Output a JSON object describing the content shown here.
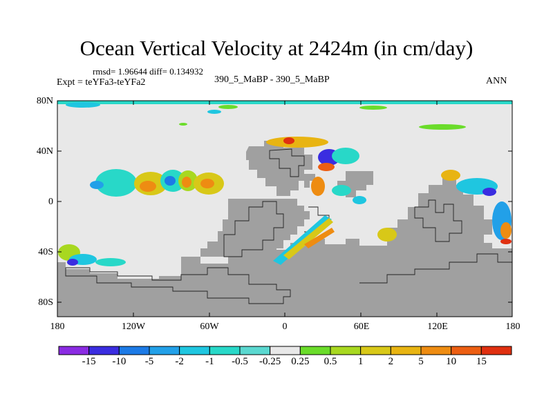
{
  "title": "Ocean Vertical Velocity at 2424m (in cm/day)",
  "stats": "rmsd= 1.96644 diff= 0.134932",
  "expt": "Expt = teYFa3-teYFa2",
  "subtitle": "390_5_MaBP - 390_5_MaBP",
  "season": "ANN",
  "lat_labels": [
    "80N",
    "40N",
    "0",
    "40S",
    "80S"
  ],
  "lon_labels": [
    "180",
    "120W",
    "60W",
    "0",
    "60E",
    "120E",
    "180"
  ],
  "colorbar": {
    "labels": [
      "-15",
      "-10",
      "-5",
      "-2",
      "-1",
      "-0.5",
      "-0.25",
      "0.25",
      "0.5",
      "1",
      "2",
      "5",
      "10",
      "15"
    ],
    "colors": [
      "#8a2be2",
      "#3a2de0",
      "#1c7ae6",
      "#22a0e8",
      "#1fc6e0",
      "#28d8c8",
      "#e8e8e8",
      "#6adc2a",
      "#a8d820",
      "#d8c818",
      "#e8b412",
      "#ee8c12",
      "#ec5e12",
      "#e03010"
    ]
  },
  "colors": {
    "land": "#a0a0a0",
    "ocean": "#e8e8e8"
  }
}
